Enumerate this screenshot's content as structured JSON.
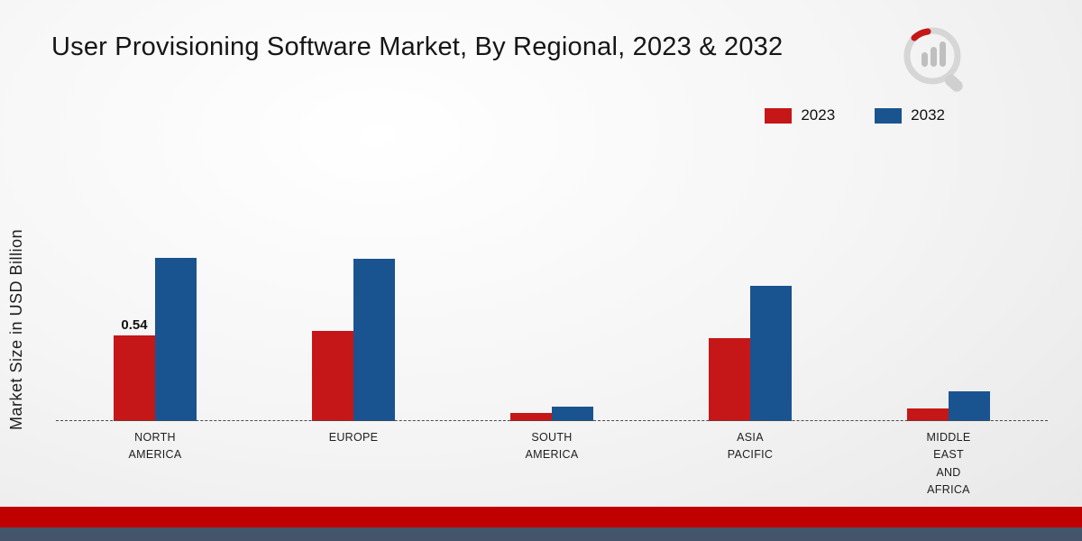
{
  "title": "User Provisioning Software Market, By Regional, 2023 & 2032",
  "ylabel": "Market Size in USD Billion",
  "legend": {
    "items": [
      {
        "label": "2023",
        "color": "#c51718"
      },
      {
        "label": "2032",
        "color": "#1a5490"
      }
    ]
  },
  "footer": {
    "red_stripe": "#c00000",
    "blue_stripe": "#44546a"
  },
  "logo": {
    "name": "brand-logo",
    "ring_color": "#d6d6d6",
    "bar_color": "#bfbfbf",
    "accent_color": "#c51718"
  },
  "chart_data": {
    "type": "bar",
    "title": "User Provisioning Software Market, By Regional, 2023 & 2032",
    "xlabel": "",
    "ylabel": "Market Size in USD Billion",
    "ylim": [
      0,
      1.25
    ],
    "grid": false,
    "legend_position": "top-right",
    "baseline": "dashed",
    "categories": [
      "NORTH AMERICA",
      "EUROPE",
      "SOUTH AMERICA",
      "ASIA PACIFIC",
      "MIDDLE EAST AND AFRICA"
    ],
    "categories_display": [
      "NORTH\nAMERICA",
      "EUROPE",
      "SOUTH\nAMERICA",
      "ASIA\nPACIFIC",
      "MIDDLE\nEAST\nAND\nAFRICA"
    ],
    "series": [
      {
        "name": "2023",
        "color": "#c51718",
        "values": [
          0.54,
          0.57,
          0.05,
          0.52,
          0.08
        ]
      },
      {
        "name": "2032",
        "color": "#1a5490",
        "values": [
          1.03,
          1.02,
          0.09,
          0.85,
          0.19
        ]
      }
    ],
    "data_labels": [
      {
        "series": 0,
        "category": 0,
        "text": "0.54"
      }
    ]
  }
}
